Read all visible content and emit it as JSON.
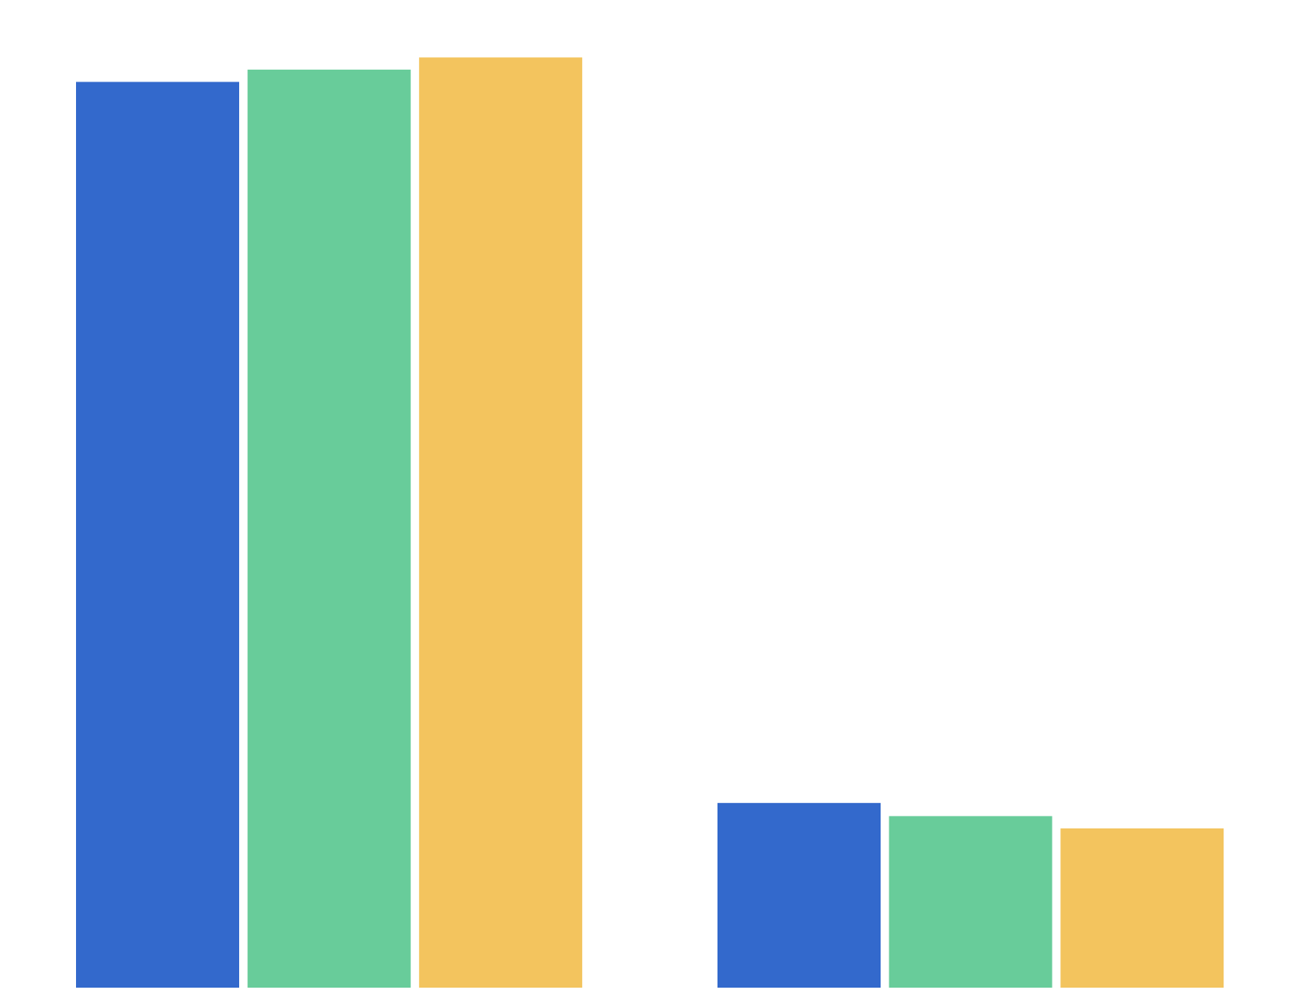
{
  "chart_data": {
    "type": "bar",
    "title": "",
    "xlabel": "",
    "ylabel": "",
    "grid": false,
    "legend": "none",
    "ylim": [
      0,
      100
    ],
    "groups": 2,
    "series": [
      {
        "color": "#3369CC",
        "values": [
          96.1,
          19.6
        ]
      },
      {
        "color": "#68CC9A",
        "values": [
          97.4,
          18.2
        ]
      },
      {
        "color": "#F3C45E",
        "values": [
          98.7,
          16.9
        ]
      }
    ]
  }
}
